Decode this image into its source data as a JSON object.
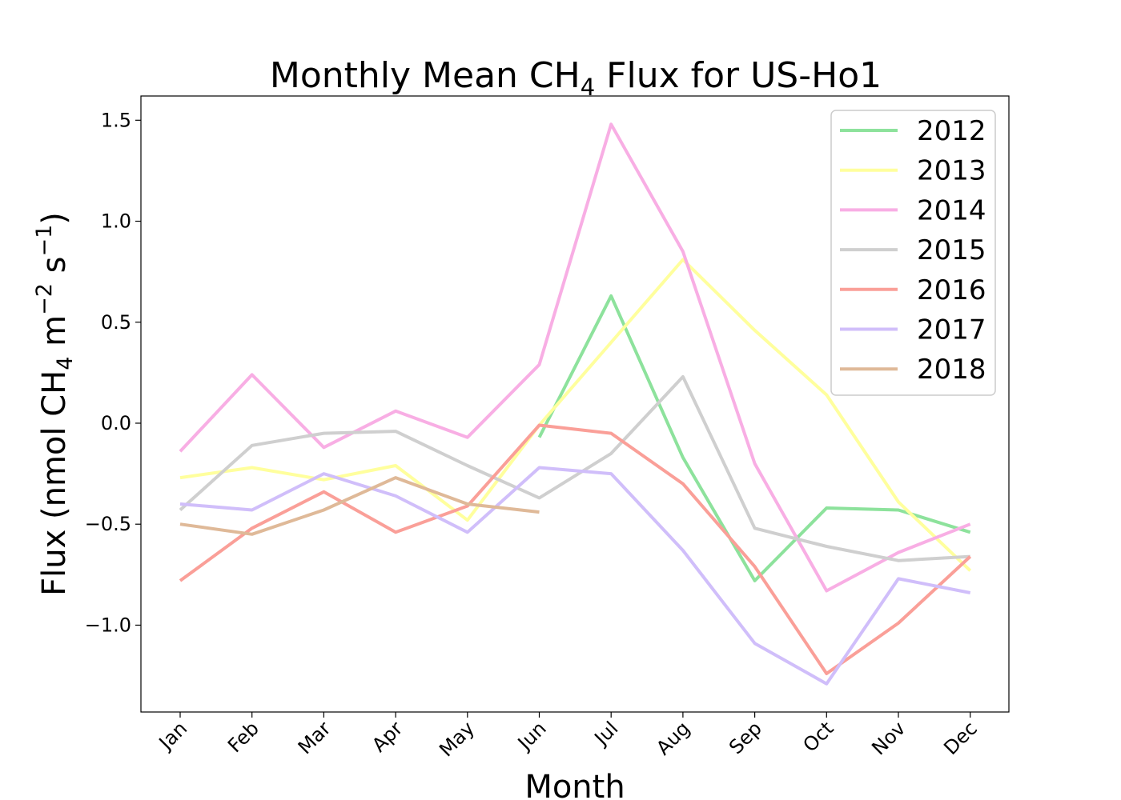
{
  "chart_data": {
    "type": "line",
    "title": {
      "prefix": "Monthly Mean CH",
      "subscript": "4",
      "suffix": " Flux for US-Ho1"
    },
    "xlabel": "Month",
    "ylabel": {
      "part1": "Flux (nmol CH",
      "sub": "4",
      "part2": " m",
      "sup1": "−2",
      "part3": " s",
      "sup2": "−1",
      "part4": ")"
    },
    "categories": [
      "Jan",
      "Feb",
      "Mar",
      "Apr",
      "May",
      "Jun",
      "Jul",
      "Aug",
      "Sep",
      "Oct",
      "Nov",
      "Dec"
    ],
    "ylim": [
      -1.43,
      1.62
    ],
    "yticks": [
      1.5,
      1.0,
      0.5,
      0.0,
      -0.5,
      -1.0
    ],
    "ytick_labels": [
      "1.5",
      "1.0",
      "0.5",
      "0.0",
      "−0.5",
      "−1.0"
    ],
    "grid": false,
    "legend_position": "top-right",
    "series": [
      {
        "name": "2012",
        "color": "#8de29c",
        "values": [
          null,
          null,
          null,
          null,
          null,
          -0.07,
          0.63,
          -0.17,
          -0.78,
          -0.42,
          -0.43,
          -0.54
        ]
      },
      {
        "name": "2013",
        "color": "#ffff9d",
        "values": [
          -0.27,
          -0.22,
          -0.28,
          -0.21,
          -0.48,
          -0.01,
          0.4,
          0.81,
          0.46,
          0.14,
          -0.39,
          -0.73
        ]
      },
      {
        "name": "2014",
        "color": "#f8aee4",
        "values": [
          -0.14,
          0.24,
          -0.12,
          0.06,
          -0.07,
          0.29,
          1.48,
          0.85,
          -0.2,
          -0.83,
          -0.64,
          -0.5
        ]
      },
      {
        "name": "2015",
        "color": "#cfcfcf",
        "values": [
          -0.43,
          -0.11,
          -0.05,
          -0.04,
          -0.21,
          -0.37,
          -0.15,
          0.23,
          -0.52,
          -0.61,
          -0.68,
          -0.66
        ]
      },
      {
        "name": "2016",
        "color": "#fa9f98",
        "values": [
          -0.78,
          -0.52,
          -0.34,
          -0.54,
          -0.41,
          -0.01,
          -0.05,
          -0.3,
          -0.71,
          -1.24,
          -0.99,
          -0.66
        ]
      },
      {
        "name": "2017",
        "color": "#d0befa",
        "values": [
          -0.4,
          -0.43,
          -0.25,
          -0.36,
          -0.54,
          -0.22,
          -0.25,
          -0.63,
          -1.09,
          -1.29,
          -0.77,
          -0.84
        ]
      },
      {
        "name": "2018",
        "color": "#dfb998",
        "values": [
          -0.5,
          -0.55,
          -0.43,
          -0.27,
          -0.4,
          -0.44,
          null,
          null,
          null,
          null,
          null,
          null
        ]
      }
    ]
  }
}
